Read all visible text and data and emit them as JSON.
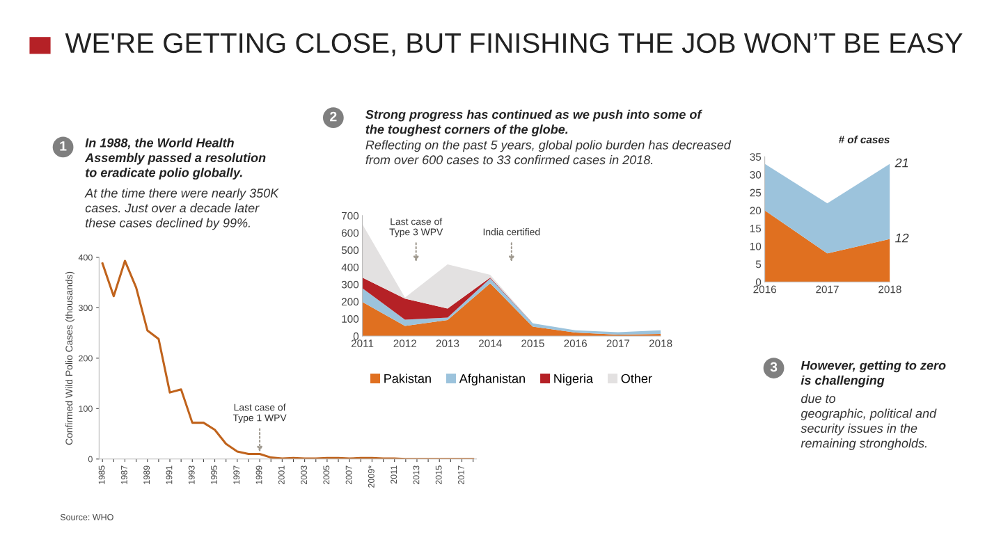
{
  "chart_data": [
    {
      "type": "line",
      "title": "WE'RE GETTING CLOSE, BUT FINISHING THE JOB WON’T BE EASY",
      "ylabel": "Confirmed Wild Polio Cases (thousands)",
      "categories": [
        "1985",
        null,
        "1987",
        null,
        "1989",
        null,
        "1991",
        null,
        "1993",
        null,
        "1995",
        null,
        "1997",
        null,
        "1999",
        null,
        "2001",
        null,
        "2003",
        null,
        "2005",
        null,
        "2007",
        null,
        "2009*",
        null,
        "2011",
        null,
        "2013",
        null,
        "2015",
        null,
        "2017",
        null
      ],
      "series": [
        {
          "color": "#c0631c",
          "values": [
            388,
            323,
            393,
            340,
            255,
            238,
            132,
            138,
            72,
            72,
            58,
            30,
            15,
            10,
            10,
            3,
            1,
            2,
            1,
            1,
            2,
            2,
            1,
            2,
            2,
            1,
            1,
            0,
            0,
            0,
            0,
            0,
            0,
            0
          ]
        }
      ],
      "ylim": [
        0,
        400
      ],
      "yticks": [
        0,
        100,
        200,
        300,
        400
      ],
      "grid": false,
      "legend": false,
      "marker": "none",
      "line_style": "solid",
      "annotations": [
        "1",
        "In 1988, the World Health\nAssembly passed a resolution\nto eradicate polio globally.",
        "At the time there were nearly 350K\ncases. Just over a decade later\nthese cases declined by 99%.",
        {
          "text": "Last case of\nType 1 WPV",
          "x": "1999",
          "y": 10
        },
        "Source: WHO"
      ]
    },
    {
      "type": "area",
      "stacked": true,
      "x": [
        2011,
        2012,
        2013,
        2014,
        2015,
        2016,
        2017,
        2018
      ],
      "series": [
        {
          "name": "Pakistan",
          "color": "#e07020",
          "values": [
            198,
            58,
            93,
            306,
            54,
            20,
            8,
            12
          ]
        },
        {
          "name": "Afghanistan",
          "color": "#9cc3dc",
          "values": [
            80,
            37,
            14,
            28,
            20,
            13,
            14,
            21
          ]
        },
        {
          "name": "Nigeria",
          "color": "#b52126",
          "values": [
            62,
            122,
            53,
            6,
            0,
            0,
            0,
            0
          ]
        },
        {
          "name": "Other",
          "color": "#e3e1e1",
          "values": [
            310,
            6,
            256,
            16,
            0,
            0,
            0,
            0
          ]
        }
      ],
      "xlim": [
        2011,
        2018
      ],
      "xticks": [
        2011,
        2012,
        2013,
        2014,
        2015,
        2016,
        2017,
        2018
      ],
      "ylim": [
        0,
        700
      ],
      "yticks": [
        0,
        100,
        200,
        300,
        400,
        500,
        600,
        700
      ],
      "grid": false,
      "legend": "bottom",
      "annotations": [
        "2",
        "Strong progress has continued as we push into some of\nthe toughest corners of the globe.",
        "Reflecting on the past 5 years, global polio burden has decreased\nfrom over 600 cases to 33 confirmed cases in 2018.",
        "Last case of\nType 3 WPV",
        "India certified"
      ]
    },
    {
      "type": "area",
      "stacked": true,
      "title": "# of cases",
      "x": [
        2016,
        2017,
        2018
      ],
      "series": [
        {
          "color": "#e07020",
          "values": [
            20,
            8,
            12
          ],
          "value_labels": [
            null,
            null,
            "12"
          ]
        },
        {
          "color": "#9cc3dc",
          "values": [
            13,
            14,
            21
          ],
          "value_labels": [
            null,
            null,
            "21"
          ]
        }
      ],
      "xlim": [
        2016,
        2018
      ],
      "xticks": [
        2016,
        2017,
        2018
      ],
      "ylim": [
        0,
        35
      ],
      "yticks": [
        0,
        5,
        10,
        15,
        20,
        25,
        30,
        35
      ],
      "grid": false,
      "legend": false,
      "annotations": [
        "3",
        "However, getting to zero\nis challenging",
        "due to\ngeographic, political and\nsecurity issues in the\nremaining strongholds."
      ]
    }
  ]
}
